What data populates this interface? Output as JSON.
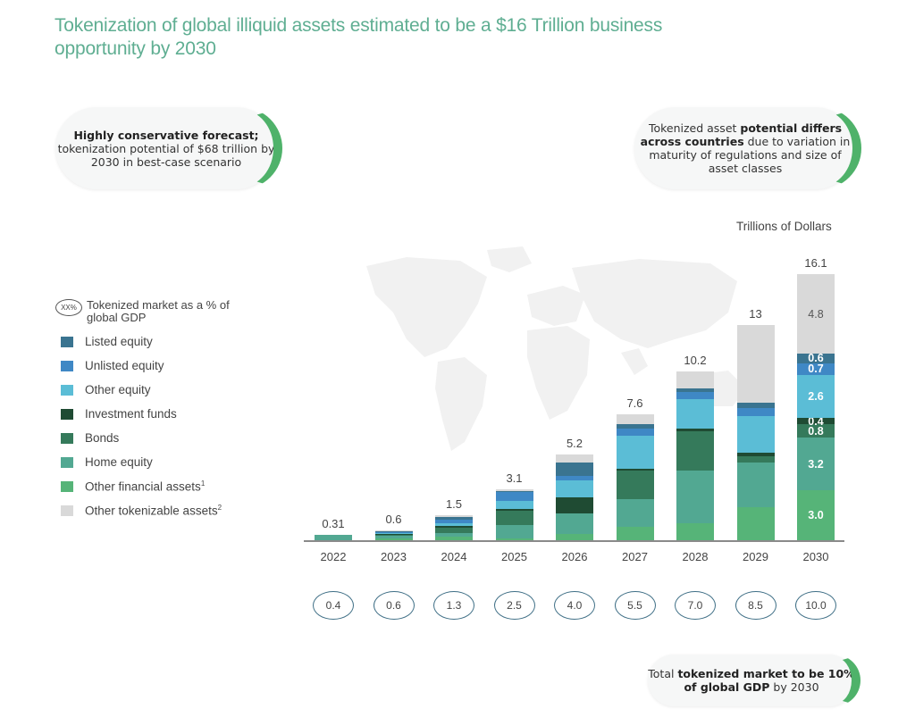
{
  "title": "Tokenization of global illiquid assets estimated to be a $16 Trillion business opportunity by 2030",
  "callouts": {
    "left": {
      "bold": "Highly conservative forecast;",
      "text": "tokenization potential of $68 trillion by 2030 in best-case scenario"
    },
    "right": {
      "pre": "Tokenized asset ",
      "bold": "potential differs across countries",
      "post": " due to variation in maturity of regulations and size of asset classes"
    },
    "bottom": {
      "pre": "Total ",
      "bold": "tokenized market to be 10% of global GDP",
      "post": " by 2030"
    }
  },
  "units_label": "Trillions of Dollars",
  "legend": {
    "gdp_key_symbol": "XX%",
    "gdp_key_label": "Tokenized market as a % of global GDP",
    "items": [
      {
        "label": "Listed equity",
        "color": "#3a7490",
        "sup": ""
      },
      {
        "label": "Unlisted equity",
        "color": "#3f88c5",
        "sup": ""
      },
      {
        "label": "Other equity",
        "color": "#5bbdd6",
        "sup": ""
      },
      {
        "label": "Investment funds",
        "color": "#1f4b33",
        "sup": ""
      },
      {
        "label": "Bonds",
        "color": "#357a5b",
        "sup": ""
      },
      {
        "label": "Home equity",
        "color": "#52a892",
        "sup": ""
      },
      {
        "label": "Other financial assets",
        "color": "#56b478",
        "sup": "1"
      },
      {
        "label": "Other tokenizable assets",
        "color": "#d9d9d9",
        "sup": "2"
      }
    ]
  },
  "chart_data": {
    "type": "bar",
    "stacked": true,
    "title": "Tokenization of global illiquid assets estimated to be a $16 Trillion business opportunity by 2030",
    "xlabel": "",
    "ylabel": "Trillions of Dollars",
    "ylim": [
      0,
      17
    ],
    "grid": false,
    "legend_position": "left",
    "categories": [
      "2022",
      "2023",
      "2024",
      "2025",
      "2026",
      "2027",
      "2028",
      "2029",
      "2030"
    ],
    "totals": [
      0.31,
      0.6,
      1.5,
      3.1,
      5.2,
      7.6,
      10.2,
      13.0,
      16.1
    ],
    "gdp_percent": [
      "0.4",
      "0.6",
      "1.3",
      "2.5",
      "4.0",
      "5.5",
      "7.0",
      "8.5",
      "10.0"
    ],
    "series": [
      {
        "name": "Other financial assets",
        "color": "#56b478",
        "values": [
          0.0,
          0.1,
          0.2,
          0.1,
          0.4,
          0.8,
          1.0,
          2.0,
          3.0
        ]
      },
      {
        "name": "Home equity",
        "color": "#52a892",
        "values": [
          0.31,
          0.15,
          0.25,
          0.8,
          1.2,
          1.7,
          3.2,
          2.7,
          3.2
        ]
      },
      {
        "name": "Bonds",
        "color": "#357a5b",
        "values": [
          0.0,
          0.1,
          0.3,
          0.9,
          0.0,
          1.7,
          2.4,
          0.4,
          0.8
        ]
      },
      {
        "name": "Investment funds",
        "color": "#1f4b33",
        "values": [
          0.0,
          0.05,
          0.1,
          0.1,
          1.0,
          0.15,
          0.15,
          0.2,
          0.4
        ]
      },
      {
        "name": "Other equity",
        "color": "#5bbdd6",
        "values": [
          0.0,
          0.05,
          0.2,
          0.5,
          1.0,
          2.0,
          1.8,
          2.2,
          2.6
        ]
      },
      {
        "name": "Unlisted equity",
        "color": "#3f88c5",
        "values": [
          0.0,
          0.05,
          0.2,
          0.5,
          0.3,
          0.4,
          0.4,
          0.5,
          0.7
        ]
      },
      {
        "name": "Listed equity",
        "color": "#3a7490",
        "values": [
          0.0,
          0.05,
          0.15,
          0.1,
          0.8,
          0.25,
          0.25,
          0.3,
          0.6
        ]
      },
      {
        "name": "Other tokenizable assets",
        "color": "#d9d9d9",
        "values": [
          0.0,
          0.05,
          0.1,
          0.1,
          0.5,
          0.6,
          1.0,
          4.7,
          4.8
        ]
      }
    ],
    "labeled_segments_2030": [
      "3.0",
      "3.2",
      "0.8",
      "0.4",
      "2.6",
      "0.7",
      "0.6",
      "4.8"
    ]
  }
}
